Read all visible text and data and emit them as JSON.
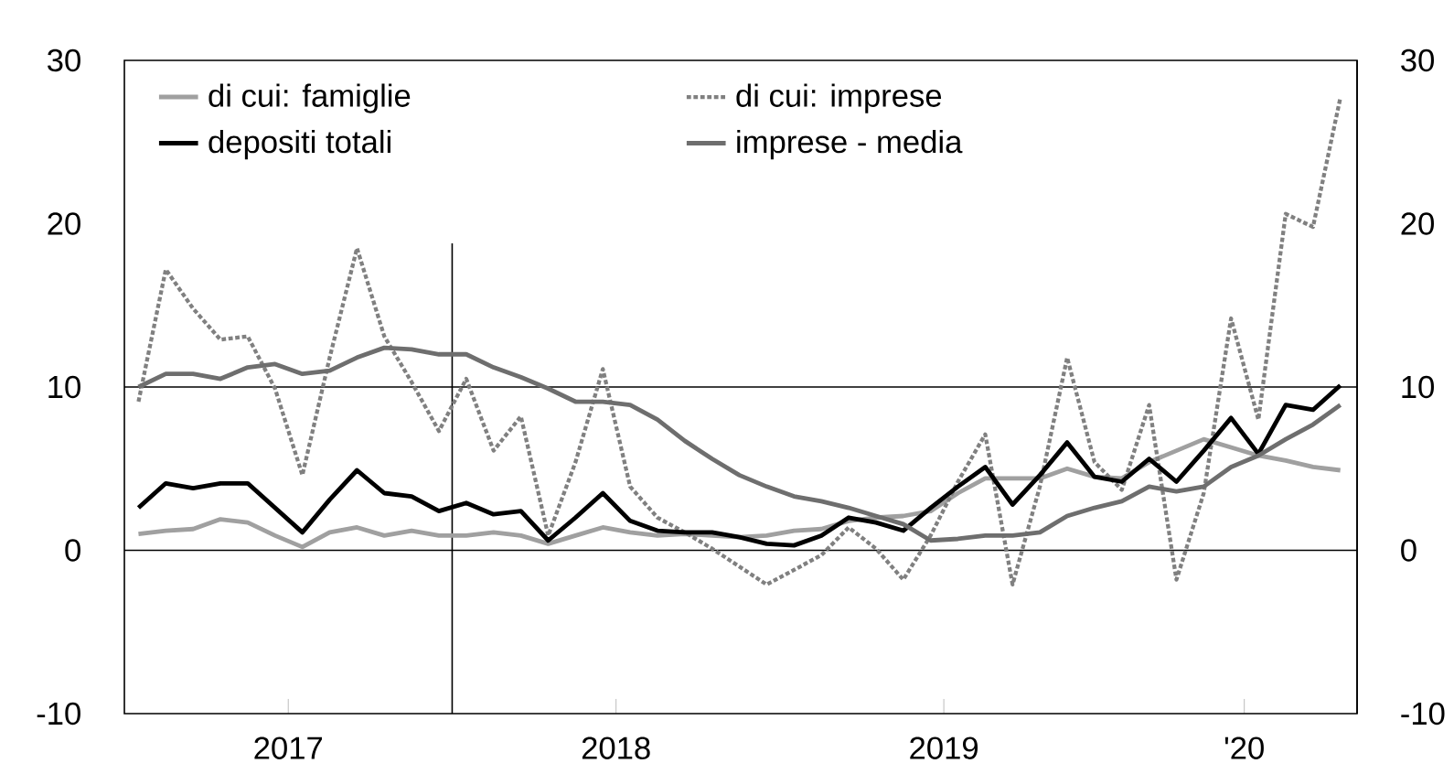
{
  "chart_data": {
    "type": "line",
    "x": [
      "2017-01",
      "2017-02",
      "2017-03",
      "2017-04",
      "2017-05",
      "2017-06",
      "2017-07",
      "2017-08",
      "2017-09",
      "2017-10",
      "2017-11",
      "2017-12",
      "2018-01",
      "2018-02",
      "2018-03",
      "2018-04",
      "2018-05",
      "2018-06",
      "2018-07",
      "2018-08",
      "2018-09",
      "2018-10",
      "2018-11",
      "2018-12",
      "2019-01",
      "2019-02",
      "2019-03",
      "2019-04",
      "2019-05",
      "2019-06",
      "2019-07",
      "2019-08",
      "2019-09",
      "2019-10",
      "2019-11",
      "2019-12",
      "2020-01",
      "2020-02",
      "2020-03",
      "2020-04",
      "2020-05",
      "2020-06",
      "2020-07",
      "2020-08",
      "2020-09"
    ],
    "series": [
      {
        "name": "di cui: famiglie",
        "color": "#a0a0a0",
        "line_style": "solid",
        "values": [
          1.0,
          1.2,
          1.3,
          1.9,
          1.7,
          0.9,
          0.2,
          1.1,
          1.4,
          0.9,
          1.2,
          0.9,
          0.9,
          1.1,
          0.9,
          0.4,
          0.9,
          1.4,
          1.1,
          0.9,
          1.0,
          0.9,
          0.8,
          0.9,
          1.2,
          1.3,
          1.8,
          2.0,
          2.1,
          2.4,
          3.5,
          4.4,
          4.4,
          4.4,
          5.0,
          4.5,
          4.4,
          5.4,
          6.1,
          6.8,
          6.3,
          5.8,
          5.5,
          5.1,
          4.9
        ]
      },
      {
        "name": "di cui: imprese",
        "color": "#808080",
        "line_style": "dotted",
        "values": [
          9.1,
          17.2,
          14.8,
          12.9,
          13.1,
          9.9,
          4.6,
          11.8,
          18.5,
          13.1,
          10.3,
          7.3,
          10.5,
          6.1,
          8.2,
          0.9,
          5.4,
          11.1,
          3.9,
          2.0,
          1.1,
          0.1,
          -1.0,
          -2.1,
          -1.2,
          -0.3,
          1.4,
          0.1,
          -1.8,
          0.9,
          4.2,
          7.1,
          -2.1,
          3.9,
          11.8,
          5.4,
          3.7,
          8.9,
          -1.8,
          3.5,
          14.2,
          8.0,
          20.6,
          19.8,
          27.7
        ]
      },
      {
        "name": "depositi totali",
        "color": "#000000",
        "line_style": "solid",
        "values": [
          2.6,
          4.1,
          3.8,
          4.1,
          4.1,
          2.6,
          1.1,
          3.1,
          4.9,
          3.5,
          3.3,
          2.4,
          2.9,
          2.2,
          2.4,
          0.6,
          2.0,
          3.5,
          1.8,
          1.2,
          1.1,
          1.1,
          0.8,
          0.4,
          0.3,
          0.9,
          2.0,
          1.7,
          1.2,
          2.6,
          3.9,
          5.1,
          2.8,
          4.6,
          6.6,
          4.5,
          4.2,
          5.6,
          4.2,
          6.1,
          8.1,
          5.9,
          8.9,
          8.6,
          10.1
        ]
      },
      {
        "name": "imprese - media",
        "color": "#6e6e6e",
        "line_style": "solid",
        "values": [
          10.0,
          10.8,
          10.8,
          10.5,
          11.2,
          11.4,
          10.8,
          11.0,
          11.8,
          12.4,
          12.3,
          12.0,
          12.0,
          11.2,
          10.6,
          9.9,
          9.1,
          9.1,
          8.9,
          8.0,
          6.7,
          5.6,
          4.6,
          3.9,
          3.3,
          3.0,
          2.6,
          2.1,
          1.6,
          0.6,
          0.7,
          0.9,
          0.9,
          1.1,
          2.1,
          2.6,
          3.0,
          3.9,
          3.6,
          3.9,
          5.1,
          5.8,
          6.8,
          7.7,
          8.9
        ]
      }
    ],
    "xlim": [
      "2016-12-16",
      "2020-09-20"
    ],
    "xticks": [
      {
        "value": "2017-06-16",
        "label": "2017"
      },
      {
        "value": "2018-06-16",
        "label": "2018"
      },
      {
        "value": "2019-06-16",
        "label": "2019"
      },
      {
        "value": "2020-05-16",
        "label": "'20"
      }
    ],
    "ylim": [
      -10,
      30
    ],
    "yticks": [
      -10,
      0,
      10,
      20,
      30
    ],
    "y2lim": [
      -10,
      30
    ],
    "y2ticks": [
      -10,
      0,
      10,
      20,
      30
    ],
    "ref_lines": [
      {
        "axis": "y",
        "value": 0
      },
      {
        "axis": "y",
        "value": 10
      },
      {
        "axis": "x",
        "value": "2017-12-16"
      }
    ],
    "legend": "top left",
    "grid": false
  }
}
